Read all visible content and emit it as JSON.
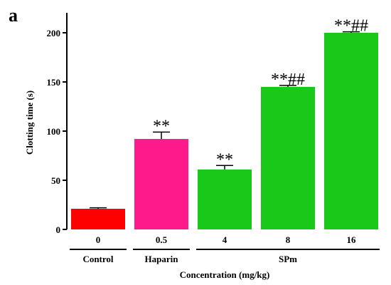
{
  "chart_data": {
    "type": "bar",
    "panel_label": "a",
    "categories": [
      "0",
      "0.5",
      "4",
      "8",
      "16"
    ],
    "values": [
      21,
      92,
      61,
      145,
      200
    ],
    "errors": [
      1,
      7,
      4,
      1.5,
      1
    ],
    "colors": [
      "#ff0000",
      "#ff1a8c",
      "#1ac81a",
      "#1ac81a",
      "#1ac81a"
    ],
    "annotations": [
      "",
      "**",
      "**",
      "**##",
      "**##"
    ],
    "groups": [
      {
        "label": "Control",
        "from": 0,
        "to": 0
      },
      {
        "label": "Haparin",
        "from": 1,
        "to": 1
      },
      {
        "label": "SPm",
        "from": 2,
        "to": 4
      }
    ],
    "ylabel": "Clotting time (s)",
    "xlabel": "Concentration (mg/kg)",
    "yticks": [
      0,
      50,
      100,
      150,
      200
    ],
    "ylim": [
      0,
      220
    ]
  }
}
